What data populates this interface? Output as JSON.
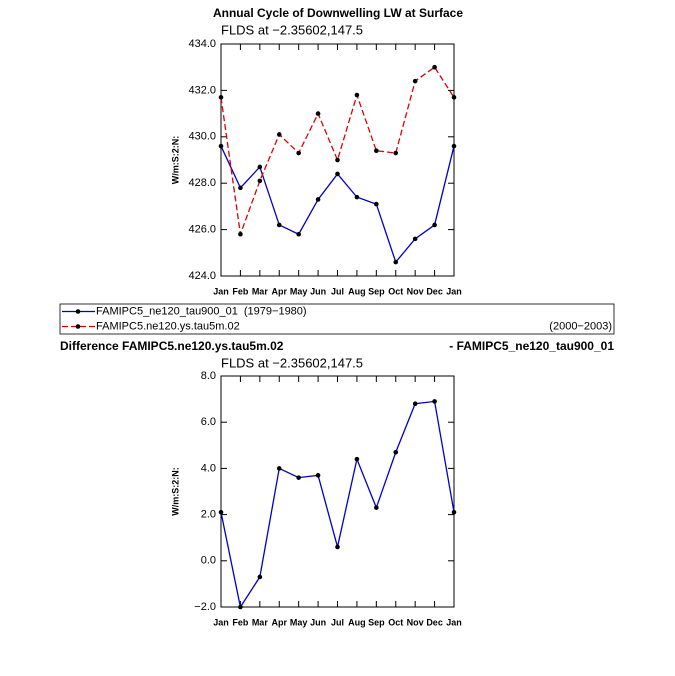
{
  "chart_data": [
    {
      "type": "line",
      "title": "Annual Cycle of Downwelling LW at Surface",
      "subtitle": "FLDS at −2.35602,147.5",
      "y_label": "W/m:S:2:N:",
      "categories": [
        "Jan",
        "Feb",
        "Mar",
        "Apr",
        "May",
        "Jun",
        "Jul",
        "Aug",
        "Sep",
        "Oct",
        "Nov",
        "Dec",
        "Jan"
      ],
      "series": [
        {
          "name": "FAMIPC5_ne120_tau900_01",
          "period": "(1979−1980)",
          "color": "#0000cc",
          "line_style": "solid",
          "values": [
            429.6,
            427.8,
            428.7,
            426.2,
            425.8,
            427.3,
            428.4,
            427.4,
            427.1,
            424.6,
            425.6,
            426.2,
            429.6
          ]
        },
        {
          "name": "FAMIPC5.ne120.ys.tau5m.02",
          "period": "(2000−2003)",
          "color": "#e00000",
          "line_style": "dashed",
          "values": [
            431.7,
            425.8,
            428.1,
            430.1,
            429.3,
            431.0,
            429.0,
            431.8,
            429.4,
            429.3,
            432.4,
            433.0,
            431.7
          ]
        }
      ],
      "ylim": [
        424,
        434
      ],
      "yticks": [
        {
          "value": 424,
          "label": "424.0"
        },
        {
          "value": 426,
          "label": "426.0"
        },
        {
          "value": 428,
          "label": "428.0"
        },
        {
          "value": 430,
          "label": "430.0"
        },
        {
          "value": 432,
          "label": "432.0"
        },
        {
          "value": 434,
          "label": "434.0"
        }
      ],
      "legend": "below"
    },
    {
      "type": "line",
      "title": "Difference FAMIPC5.ne120.ys.tau5m.02",
      "title_right": "- FAMIPC5_ne120_tau900_01",
      "subtitle": "FLDS at −2.35602,147.5",
      "y_label": "W/m:S:2:N:",
      "categories": [
        "Jan",
        "Feb",
        "Mar",
        "Apr",
        "May",
        "Jun",
        "Jul",
        "Aug",
        "Sep",
        "Oct",
        "Nov",
        "Dec",
        "Jan"
      ],
      "color": "#0000cc",
      "values": [
        2.1,
        -2.0,
        -0.7,
        4.0,
        3.6,
        3.7,
        0.6,
        4.4,
        2.3,
        4.7,
        6.8,
        6.9,
        2.1
      ],
      "ylim": [
        -2,
        8
      ],
      "yticks": [
        {
          "value": -2,
          "label": "−2.0"
        },
        {
          "value": 0,
          "label": "0.0"
        },
        {
          "value": 2,
          "label": "2.0"
        },
        {
          "value": 4,
          "label": "4.0"
        },
        {
          "value": 6,
          "label": "6.0"
        },
        {
          "value": 8,
          "label": "8.0"
        }
      ]
    }
  ]
}
